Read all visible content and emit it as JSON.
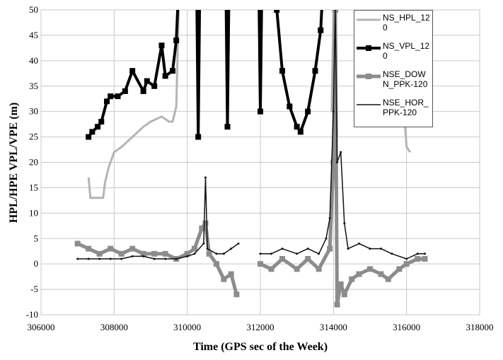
{
  "chart_data": {
    "type": "line",
    "xlabel": "Time (GPS sec of the Week)",
    "ylabel": "HPL/HPE  VPL/VPE (m)",
    "xlim": [
      306000,
      318000
    ],
    "ylim": [
      -10,
      50
    ],
    "xticks": [
      306000,
      308000,
      310000,
      312000,
      314000,
      316000,
      318000
    ],
    "yticks": [
      -10,
      -5,
      0,
      5,
      10,
      15,
      20,
      25,
      30,
      35,
      40,
      45,
      50
    ],
    "grid": true,
    "legend": "upper right",
    "series": [
      {
        "name": "NS_HPL_120",
        "color": "#b4b4b4",
        "width": 3,
        "marker": "none",
        "x": [
          307300,
          307350,
          307700,
          307750,
          307850,
          308000,
          308200,
          308500,
          308800,
          309000,
          309300,
          309500,
          309600,
          309700,
          309750,
          309800,
          null,
          313950,
          314000,
          314050,
          314100,
          null,
          315950,
          316000,
          316100
        ],
        "values": [
          17,
          13,
          13,
          16,
          19,
          22,
          23,
          25,
          27,
          28,
          29,
          28,
          28,
          31,
          46,
          60,
          null,
          30,
          50,
          60,
          25,
          null,
          28,
          23,
          22
        ]
      },
      {
        "name": "NS_VPL_120",
        "color": "#000000",
        "width": 4,
        "marker": "square",
        "x": [
          307300,
          307400,
          307550,
          307650,
          307800,
          307900,
          308100,
          308300,
          308500,
          308800,
          308900,
          309100,
          309300,
          309400,
          309600,
          309700,
          309800,
          null,
          310250,
          310300,
          310350,
          null,
          311050,
          311100,
          311150,
          null,
          311950,
          312000,
          312050,
          null,
          312450,
          312600,
          312800,
          313000,
          313100,
          313300,
          313500,
          313650,
          313750,
          null,
          314000,
          314050,
          314100,
          null,
          315900,
          315950,
          316000
        ],
        "values": [
          25,
          26,
          27,
          28,
          32,
          33,
          33,
          34,
          38,
          34,
          36,
          35,
          43,
          37,
          38,
          44,
          60,
          null,
          60,
          25,
          60,
          null,
          60,
          27,
          60,
          null,
          60,
          30,
          60,
          null,
          50,
          38,
          31,
          27,
          26,
          30,
          38,
          46,
          60,
          null,
          60,
          50,
          60,
          null,
          60,
          28,
          60
        ]
      },
      {
        "name": "NSE_DOWN_PPK-120",
        "color": "#8c8c8c",
        "width": 5,
        "marker": "square",
        "x": [
          307000,
          307300,
          307600,
          307900,
          308200,
          308500,
          308800,
          309100,
          309400,
          309700,
          310000,
          310200,
          310400,
          310500,
          310600,
          310800,
          311000,
          311200,
          311350,
          null,
          312000,
          312300,
          312600,
          313000,
          313300,
          313600,
          313900,
          314000,
          314050,
          314100,
          314200,
          314300,
          314500,
          314700,
          315000,
          315300,
          315500,
          315800,
          316000,
          316300,
          316500
        ],
        "values": [
          4,
          3,
          2,
          3,
          2,
          3,
          2,
          2,
          2,
          1,
          2,
          3,
          7,
          8,
          2,
          0,
          -3,
          -2,
          -6,
          null,
          0,
          -1,
          1,
          -1,
          1,
          -1,
          3,
          20,
          50,
          -8,
          -4,
          -6,
          -3,
          -2,
          -1,
          -2,
          -3,
          -1,
          0,
          1,
          1
        ]
      },
      {
        "name": "NSE_HOR_PPK-120",
        "color": "#111111",
        "width": 1.5,
        "marker": "dot",
        "x": [
          307000,
          307300,
          307600,
          307900,
          308200,
          308500,
          308800,
          309100,
          309400,
          309700,
          310000,
          310200,
          310450,
          310500,
          310550,
          310800,
          311000,
          311200,
          311400,
          null,
          312000,
          312300,
          312600,
          313000,
          313300,
          313600,
          313800,
          313900,
          314000,
          314050,
          314100,
          314200,
          314300,
          314400,
          314700,
          315000,
          315300,
          315600,
          316000,
          316300,
          316500
        ],
        "values": [
          1,
          1,
          1,
          1,
          1,
          1.5,
          1.5,
          1,
          1,
          1,
          1.5,
          2,
          4,
          17,
          3,
          2,
          2,
          3,
          4,
          null,
          2,
          2,
          3,
          2,
          3,
          2,
          5,
          9,
          30,
          50,
          20,
          22,
          8,
          3,
          4,
          3,
          3,
          2,
          1,
          2,
          2
        ]
      }
    ]
  }
}
